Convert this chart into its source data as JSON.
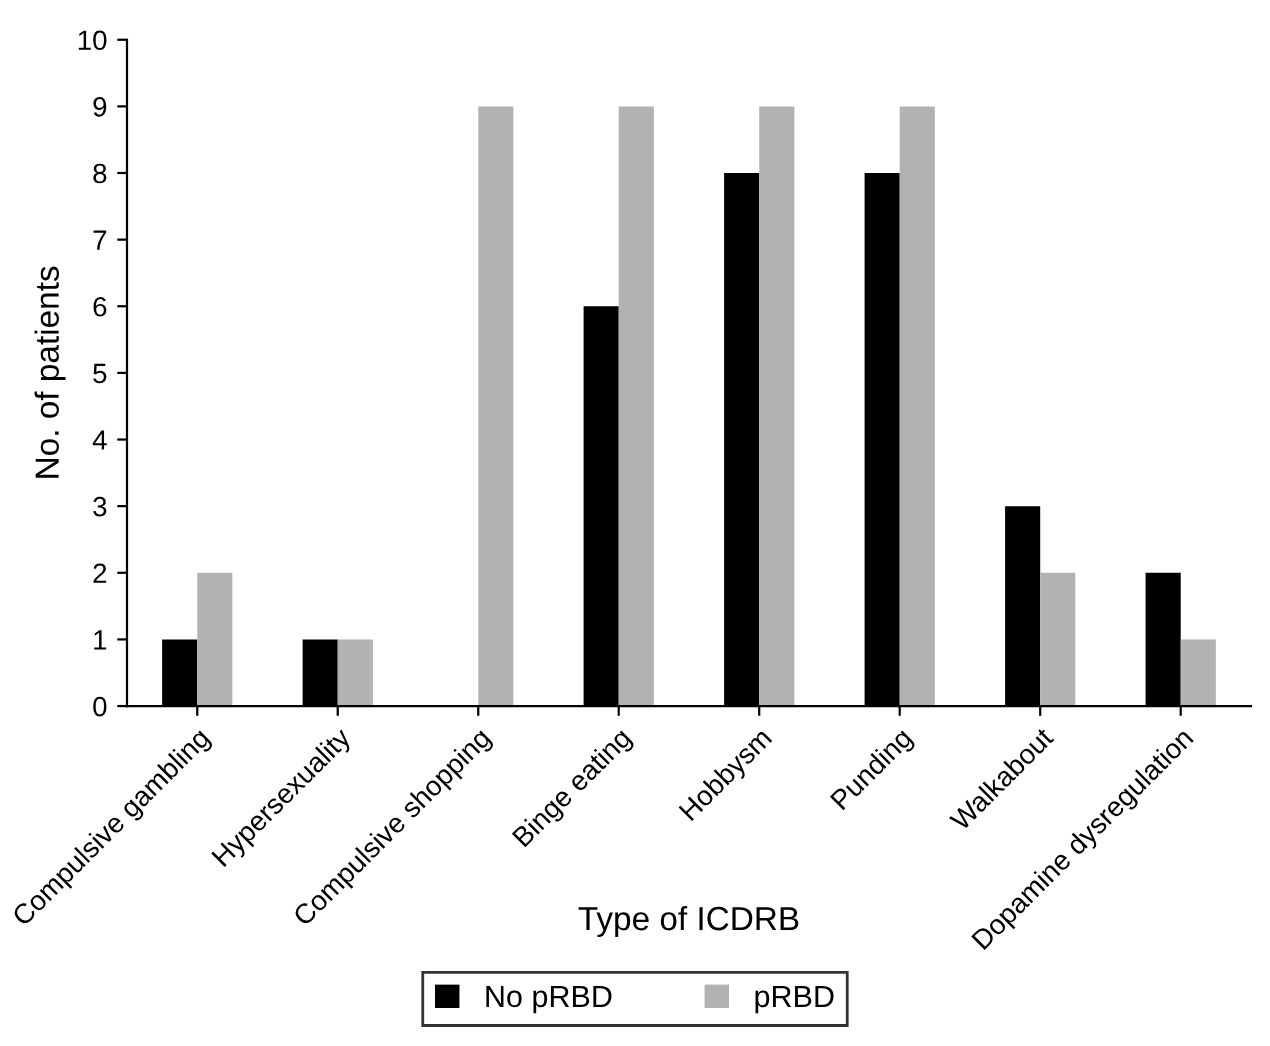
{
  "chart_data": {
    "type": "bar",
    "xlabel": "Type of ICDRB",
    "ylabel": "No. of patients",
    "categories": [
      "Compulsive gambling",
      "Hypersexuality",
      "Compulsive shopping",
      "Binge eating",
      "Hobbysm",
      "Punding",
      "Walkabout",
      "Dopamine dysregulation"
    ],
    "series": [
      {
        "name": "No pRBD",
        "color": "#000000",
        "values": [
          1,
          1,
          0,
          6,
          8,
          8,
          3,
          2
        ]
      },
      {
        "name": "pRBD",
        "color": "#b2b2b2",
        "values": [
          2,
          1,
          9,
          9,
          9,
          9,
          2,
          1
        ]
      }
    ],
    "ylim": [
      0,
      10
    ],
    "yticks": [
      0,
      1,
      2,
      3,
      4,
      5,
      6,
      7,
      8,
      9,
      10
    ],
    "grid": false,
    "legend": "bottom"
  }
}
